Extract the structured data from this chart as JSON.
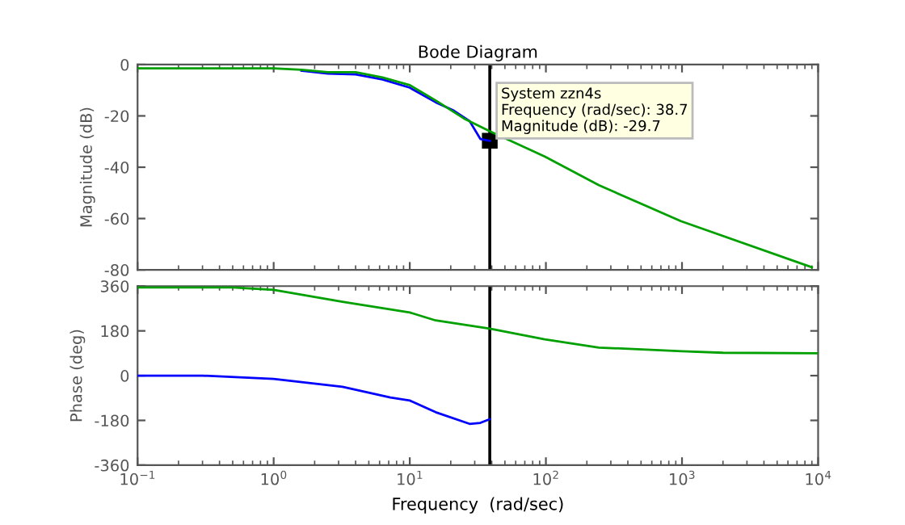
{
  "chart_data": [
    {
      "type": "line",
      "title": "Bode Diagram",
      "ylabel": "Magnitude (dB)",
      "log": "x",
      "grid": false,
      "legend": false,
      "tick_labels": "y",
      "xlim": [
        0.1,
        10000
      ],
      "xticks": [
        {
          "value": 0.1,
          "label": null
        },
        {
          "value": 1,
          "label": null
        },
        {
          "value": 10,
          "label": null
        },
        {
          "value": 100,
          "label": null
        },
        {
          "value": 1000,
          "label": null
        },
        {
          "value": 10000,
          "label": null
        }
      ],
      "ylim": [
        -80,
        0
      ],
      "yticks": [
        -80,
        -60,
        -40,
        -20,
        0
      ],
      "series": [
        {
          "color": "#00a000",
          "x": [
            0.1,
            1,
            1.6,
            2.5,
            4,
            6.3,
            10,
            15.5,
            25,
            38.7,
            98,
            245,
            980,
            9000
          ],
          "values": [
            -1.5,
            -1.5,
            -2,
            -3,
            -3,
            -5,
            -8,
            -14,
            -21,
            -26,
            -35.8,
            -47,
            -61,
            -79
          ]
        },
        {
          "color": "#0000ff",
          "x": [
            1.6,
            2.5,
            4,
            6.3,
            10,
            15.5,
            21,
            27.5,
            33,
            38.7
          ],
          "values": [
            -2.4,
            -3.5,
            -3.8,
            -5.8,
            -9,
            -14.7,
            -17.9,
            -22,
            -29,
            -29.7
          ]
        }
      ],
      "ref_lines": [
        {
          "axis": "x",
          "value": 38.7,
          "color": "#000000"
        }
      ],
      "annotations": [
        {
          "text": "System zzn4s\nFrequency (rad/sec): 38.7\nMagnitude (dB): -29.7",
          "x": 38.7,
          "y": -29.7
        }
      ]
    },
    {
      "type": "line",
      "xlabel": "Frequency  (rad/sec)",
      "ylabel": "Phase (deg)",
      "log": "x",
      "grid": false,
      "legend": false,
      "xlim": [
        0.1,
        10000
      ],
      "xticks": [
        {
          "value": 0.1,
          "label": "10$^{−1}$"
        },
        {
          "value": 1,
          "label": "10$^{0}$"
        },
        {
          "value": 10,
          "label": "10$^{1}$"
        },
        {
          "value": 100,
          "label": "10$^{2}$"
        },
        {
          "value": 1000,
          "label": "10$^{3}$"
        },
        {
          "value": 10000,
          "label": "10$^{4}$"
        }
      ],
      "ylim": [
        -360,
        360
      ],
      "yticks": [
        -360,
        -180,
        0,
        180,
        360
      ],
      "series": [
        {
          "color": "#00a000",
          "x": [
            0.1,
            0.5,
            1,
            3.2,
            10,
            15.5,
            38.7,
            98,
            245,
            1000,
            2000,
            10000
          ],
          "values": [
            355,
            355,
            345,
            297,
            254,
            222,
            189,
            146,
            113,
            98,
            92,
            90
          ]
        },
        {
          "color": "#0000ff",
          "x": [
            0.1,
            0.3,
            1,
            3.2,
            7.2,
            10,
            15.5,
            27.5,
            33,
            38.7
          ],
          "values": [
            0,
            0,
            -13,
            -45,
            -88,
            -100,
            -147,
            -194,
            -190,
            -175
          ]
        }
      ],
      "ref_lines": [
        {
          "axis": "x",
          "value": 38.7,
          "color": "#000000"
        }
      ]
    }
  ]
}
